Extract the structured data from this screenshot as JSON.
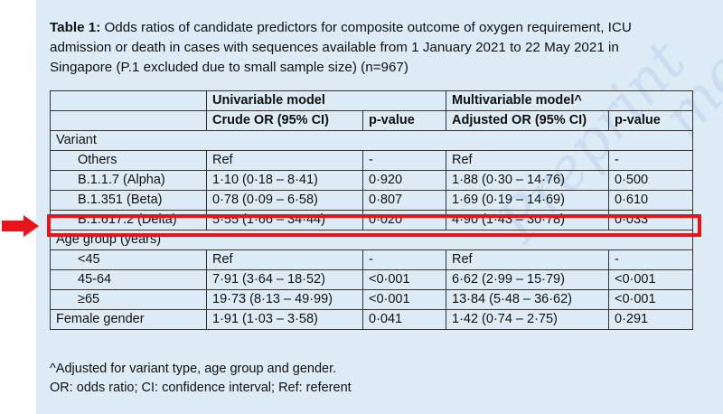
{
  "title": {
    "label": "Table 1:",
    "text": " Odds ratios of candidate predictors for composite outcome of oxygen requirement, ICU admission or death in cases with sequences available from 1 January 2021 to 22 May 2021 in Singapore (P.1 excluded due to small sample size) (n=967)"
  },
  "table": {
    "group_headers": [
      "Univariable model",
      "Multivariable model^"
    ],
    "column_headers": [
      "Crude OR (95% CI)",
      "p-value",
      "Adjusted OR (95% CI)",
      "p-value"
    ],
    "rows": [
      {
        "label": "Variant",
        "section": true
      },
      {
        "label": "Others",
        "cells": [
          "Ref",
          "-",
          "Ref",
          "-"
        ]
      },
      {
        "label": "B.1.1.7 (Alpha)",
        "cells": [
          "1·10 (0·18 – 8·41)",
          "0·920",
          "1·88 (0·30 – 14·76)",
          "0·500"
        ]
      },
      {
        "label": "B.1.351 (Beta)",
        "cells": [
          "0·78 (0·09 – 6·58)",
          "0·807",
          "1·69 (0·19 – 14·69)",
          "0·610"
        ]
      },
      {
        "label": "B.1.617.2 (Delta)",
        "cells": [
          "5·55 (1·66 – 34·44)",
          "0·020",
          "4·90 (1·43 – 30·78)",
          "0·033"
        ],
        "highlighted": true
      },
      {
        "label": "Age group (years)",
        "section": true
      },
      {
        "label": "<45",
        "cells": [
          "Ref",
          "-",
          "Ref",
          "-"
        ]
      },
      {
        "label": "45-64",
        "cells": [
          "7·91 (3·64 – 18·52)",
          "<0·001",
          "6·62 (2·99 – 15·79)",
          "<0·001"
        ]
      },
      {
        "label": "≥65",
        "cells": [
          "19·73 (8·13 – 49·99)",
          "<0·001",
          "13·84 (5·48 – 36·62)",
          "<0·001"
        ]
      },
      {
        "label": "Female gender",
        "cells": [
          "1·91 (1·03 – 3·58)",
          "0·041",
          "1·42 (0·74 – 2·75)",
          "0·291"
        ],
        "top_level": true
      }
    ]
  },
  "footnotes": [
    "^Adjusted for variant type, age group and gender.",
    "OR: odds ratio; CI: confidence interval; Ref: referent"
  ],
  "colors": {
    "background": "#dcebf6",
    "highlight": "#e8131b",
    "arrow": "#e8131b"
  }
}
